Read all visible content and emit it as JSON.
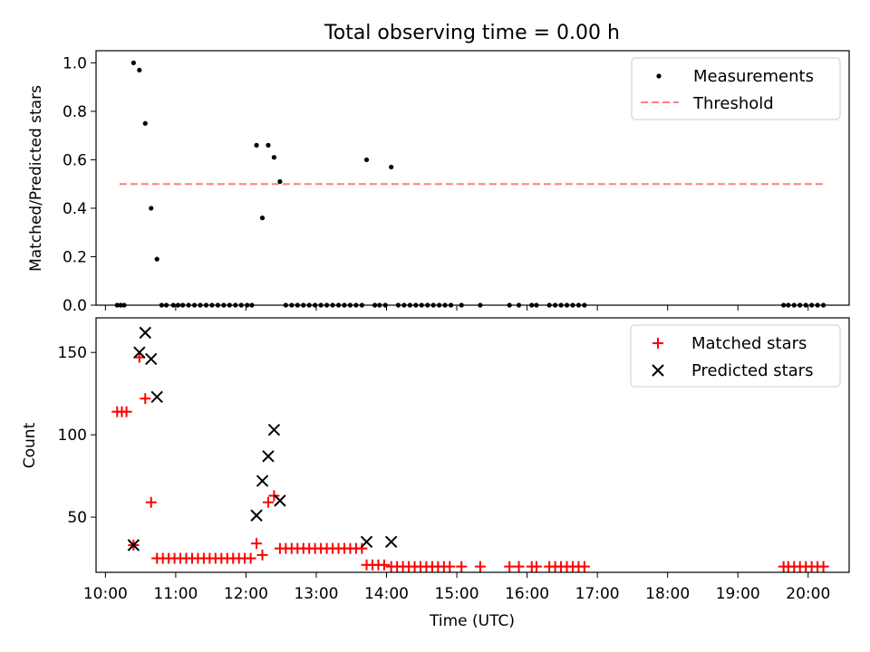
{
  "chart_data": [
    {
      "type": "scatter",
      "title": "Total observing time = 0.00 h",
      "ylabel": "Matched/Predicted stars",
      "xlabel": "",
      "ylim": [
        0,
        1.05
      ],
      "yticks": [
        "0.0",
        "0.2",
        "0.4",
        "0.6",
        "0.8",
        "1.0"
      ],
      "legend_position": "top-right",
      "threshold": {
        "name": "Threshold",
        "value": 0.5,
        "x_start": "10:12",
        "x_end": "20:15",
        "color": "#ff7f7f"
      },
      "series": [
        {
          "name": "Measurements",
          "color": "#000000",
          "points": [
            [
              "10:10",
              0
            ],
            [
              "10:13",
              0
            ],
            [
              "10:16",
              0
            ],
            [
              "10:24",
              1.0
            ],
            [
              "10:29",
              0.97
            ],
            [
              "10:34",
              0.75
            ],
            [
              "10:39",
              0.4
            ],
            [
              "10:44",
              0.19
            ],
            [
              "10:48",
              0
            ],
            [
              "10:52",
              0
            ],
            [
              "10:58",
              0
            ],
            [
              "11:02",
              0
            ],
            [
              "11:06",
              0
            ],
            [
              "11:11",
              0
            ],
            [
              "11:16",
              0
            ],
            [
              "11:21",
              0
            ],
            [
              "11:26",
              0
            ],
            [
              "11:31",
              0
            ],
            [
              "11:36",
              0
            ],
            [
              "11:41",
              0
            ],
            [
              "11:46",
              0
            ],
            [
              "11:51",
              0
            ],
            [
              "11:56",
              0
            ],
            [
              "12:01",
              0
            ],
            [
              "12:05",
              0
            ],
            [
              "12:09",
              0.66
            ],
            [
              "12:14",
              0.36
            ],
            [
              "12:19",
              0.66
            ],
            [
              "12:24",
              0.61
            ],
            [
              "12:29",
              0.51
            ],
            [
              "12:34",
              0
            ],
            [
              "12:39",
              0
            ],
            [
              "12:44",
              0
            ],
            [
              "12:49",
              0
            ],
            [
              "12:54",
              0
            ],
            [
              "12:59",
              0
            ],
            [
              "13:04",
              0
            ],
            [
              "13:09",
              0
            ],
            [
              "13:14",
              0
            ],
            [
              "13:19",
              0
            ],
            [
              "13:24",
              0
            ],
            [
              "13:29",
              0
            ],
            [
              "13:34",
              0
            ],
            [
              "13:39",
              0
            ],
            [
              "13:43",
              0.6
            ],
            [
              "13:50",
              0
            ],
            [
              "13:54",
              0
            ],
            [
              "13:59",
              0
            ],
            [
              "14:04",
              0.57
            ],
            [
              "14:10",
              0
            ],
            [
              "14:15",
              0
            ],
            [
              "14:20",
              0
            ],
            [
              "14:25",
              0
            ],
            [
              "14:30",
              0
            ],
            [
              "14:35",
              0
            ],
            [
              "14:40",
              0
            ],
            [
              "14:45",
              0
            ],
            [
              "14:50",
              0
            ],
            [
              "14:55",
              0
            ],
            [
              "15:04",
              0
            ],
            [
              "15:20",
              0
            ],
            [
              "15:45",
              0
            ],
            [
              "15:53",
              0
            ],
            [
              "16:04",
              0
            ],
            [
              "16:08",
              0
            ],
            [
              "16:19",
              0
            ],
            [
              "16:24",
              0
            ],
            [
              "16:29",
              0
            ],
            [
              "16:34",
              0
            ],
            [
              "16:39",
              0
            ],
            [
              "16:44",
              0
            ],
            [
              "16:49",
              0
            ],
            [
              "19:39",
              0
            ],
            [
              "19:43",
              0
            ],
            [
              "19:48",
              0
            ],
            [
              "19:53",
              0
            ],
            [
              "19:58",
              0
            ],
            [
              "20:03",
              0
            ],
            [
              "20:08",
              0
            ],
            [
              "20:13",
              0
            ]
          ]
        }
      ]
    },
    {
      "type": "scatter",
      "ylabel": "Count",
      "xlabel": "Time (UTC)",
      "ylim": [
        16.5,
        171
      ],
      "yticks": [
        "50",
        "100",
        "150"
      ],
      "xticks": [
        "10:00",
        "11:00",
        "12:00",
        "13:00",
        "14:00",
        "15:00",
        "16:00",
        "17:00",
        "18:00",
        "19:00",
        "20:00"
      ],
      "xlim": [
        "09:52",
        "20:35"
      ],
      "legend_position": "top-right",
      "series": [
        {
          "name": "Matched stars",
          "marker": "+",
          "color": "#ff0000",
          "points": [
            [
              "10:10",
              114
            ],
            [
              "10:14",
              114
            ],
            [
              "10:18",
              114
            ],
            [
              "10:24",
              33
            ],
            [
              "10:29",
              147
            ],
            [
              "10:34",
              122
            ],
            [
              "10:39",
              59
            ],
            [
              "10:44",
              25
            ],
            [
              "10:49",
              25
            ],
            [
              "10:54",
              25
            ],
            [
              "10:59",
              25
            ],
            [
              "11:04",
              25
            ],
            [
              "11:09",
              25
            ],
            [
              "11:14",
              25
            ],
            [
              "11:19",
              25
            ],
            [
              "11:24",
              25
            ],
            [
              "11:29",
              25
            ],
            [
              "11:34",
              25
            ],
            [
              "11:39",
              25
            ],
            [
              "11:44",
              25
            ],
            [
              "11:49",
              25
            ],
            [
              "11:54",
              25
            ],
            [
              "11:59",
              25
            ],
            [
              "12:04",
              25
            ],
            [
              "12:09",
              34
            ],
            [
              "12:14",
              27
            ],
            [
              "12:19",
              59
            ],
            [
              "12:24",
              63
            ],
            [
              "12:29",
              31
            ],
            [
              "12:34",
              31
            ],
            [
              "12:39",
              31
            ],
            [
              "12:44",
              31
            ],
            [
              "12:49",
              31
            ],
            [
              "12:54",
              31
            ],
            [
              "12:59",
              31
            ],
            [
              "13:04",
              31
            ],
            [
              "13:09",
              31
            ],
            [
              "13:14",
              31
            ],
            [
              "13:19",
              31
            ],
            [
              "13:24",
              31
            ],
            [
              "13:29",
              31
            ],
            [
              "13:34",
              31
            ],
            [
              "13:39",
              31
            ],
            [
              "13:43",
              21
            ],
            [
              "13:48",
              21
            ],
            [
              "13:53",
              21
            ],
            [
              "13:58",
              21
            ],
            [
              "14:04",
              20
            ],
            [
              "14:09",
              20
            ],
            [
              "14:14",
              20
            ],
            [
              "14:19",
              20
            ],
            [
              "14:24",
              20
            ],
            [
              "14:29",
              20
            ],
            [
              "14:34",
              20
            ],
            [
              "14:39",
              20
            ],
            [
              "14:44",
              20
            ],
            [
              "14:49",
              20
            ],
            [
              "14:54",
              20
            ],
            [
              "15:04",
              20
            ],
            [
              "15:20",
              20
            ],
            [
              "15:45",
              20
            ],
            [
              "15:53",
              20
            ],
            [
              "16:04",
              20
            ],
            [
              "16:08",
              20
            ],
            [
              "16:19",
              20
            ],
            [
              "16:24",
              20
            ],
            [
              "16:29",
              20
            ],
            [
              "16:34",
              20
            ],
            [
              "16:39",
              20
            ],
            [
              "16:44",
              20
            ],
            [
              "16:49",
              20
            ],
            [
              "19:39",
              20
            ],
            [
              "19:43",
              20
            ],
            [
              "19:48",
              20
            ],
            [
              "19:53",
              20
            ],
            [
              "19:58",
              20
            ],
            [
              "20:03",
              20
            ],
            [
              "20:08",
              20
            ],
            [
              "20:13",
              20
            ]
          ]
        },
        {
          "name": "Predicted stars",
          "marker": "x",
          "color": "#000000",
          "points": [
            [
              "10:24",
              33
            ],
            [
              "10:29",
              150
            ],
            [
              "10:34",
              162
            ],
            [
              "10:39",
              146
            ],
            [
              "10:44",
              123
            ],
            [
              "12:09",
              51
            ],
            [
              "12:14",
              72
            ],
            [
              "12:19",
              87
            ],
            [
              "12:24",
              103
            ],
            [
              "12:29",
              60
            ],
            [
              "13:43",
              35
            ],
            [
              "14:04",
              35
            ]
          ]
        }
      ]
    }
  ]
}
